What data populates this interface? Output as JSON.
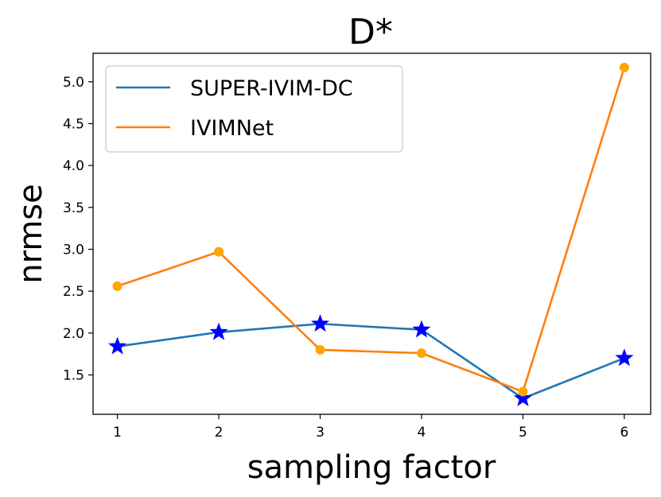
{
  "chart_data": {
    "type": "line",
    "title": "D*",
    "xlabel": "sampling factor",
    "ylabel": "nrmse",
    "categories": [
      1,
      2,
      3,
      4,
      5,
      6
    ],
    "x": [
      1,
      2,
      3,
      4,
      5,
      6
    ],
    "xlim": [
      0.76,
      6.26
    ],
    "ylim": [
      1.03,
      5.34
    ],
    "xticks": [
      "1",
      "2",
      "3",
      "4",
      "5",
      "6"
    ],
    "yticks": [
      "1.5",
      "2.0",
      "2.5",
      "3.0",
      "3.5",
      "4.0",
      "4.5",
      "5.0"
    ],
    "ytick_values": [
      1.5,
      2.0,
      2.5,
      3.0,
      3.5,
      4.0,
      4.5,
      5.0
    ],
    "legend_position": "upper-left",
    "grid": false,
    "series": [
      {
        "name": "SUPER-IVIM-DC",
        "values": [
          1.84,
          2.01,
          2.11,
          2.04,
          1.22,
          1.7
        ],
        "line_color": "#1f77b4",
        "marker": "star",
        "marker_color": "#0000ff"
      },
      {
        "name": "IVIMNet",
        "values": [
          2.56,
          2.97,
          1.8,
          1.76,
          1.3,
          5.17
        ],
        "line_color": "#ff7f0e",
        "marker": "circle",
        "marker_color": "#ffa500"
      }
    ]
  }
}
